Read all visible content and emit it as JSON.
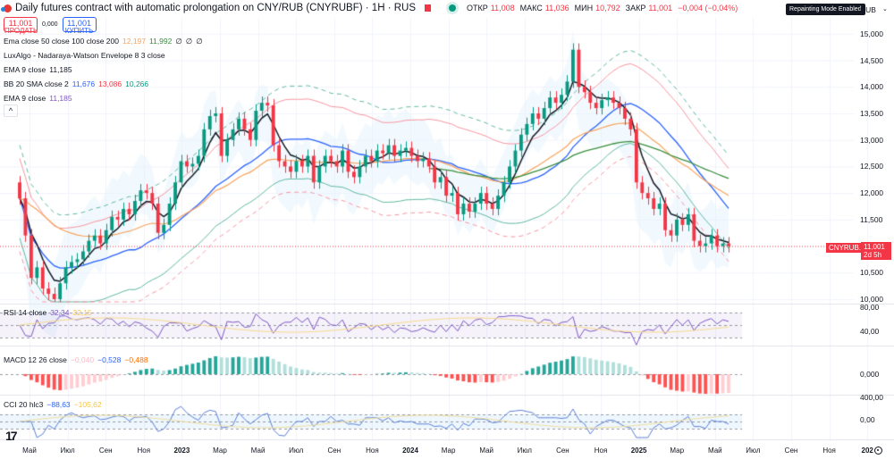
{
  "header": {
    "title": "Daily futures contract with automatic prolongation on CNY/RUB (CNYRUBF) · 1H · RUS",
    "ohlc": [
      {
        "label": "ОТКР",
        "value": "11,008"
      },
      {
        "label": "МАКС",
        "value": "11,036"
      },
      {
        "label": "МИН",
        "value": "10,792"
      },
      {
        "label": "ЗАКР",
        "value": "11,001"
      }
    ],
    "change": "−0,004 (−0,04%)",
    "mode_badge": "Repainting Mode Enabled",
    "currency": "RUB",
    "currency_caret": "⌄"
  },
  "trade": {
    "sell_price": "11,001",
    "sell_label": "ПРОДАТЬ",
    "spread": "0,000",
    "buy_price": "11,001",
    "buy_label": "КУПИТЬ"
  },
  "legends": [
    {
      "name": "Ema close 50 close 100 close 200",
      "values": [
        {
          "v": "12,197",
          "color": "#f7a35c"
        },
        {
          "v": "11,992",
          "color": "#388e3c"
        },
        {
          "v": "∅",
          "color": "#131722"
        },
        {
          "v": "∅",
          "color": "#131722"
        },
        {
          "v": "∅",
          "color": "#131722"
        }
      ]
    },
    {
      "name": "LuxAlgo - Nadaraya-Watson Envelope 8 3 close",
      "values": []
    },
    {
      "name": "EMA 9 close",
      "values": [
        {
          "v": "11,185",
          "color": "#131722"
        }
      ]
    },
    {
      "name": "BB 20 SMA close 2",
      "values": [
        {
          "v": "11,676",
          "color": "#2962ff"
        },
        {
          "v": "13,086",
          "color": "#f23645"
        },
        {
          "v": "10,266",
          "color": "#089981"
        }
      ]
    },
    {
      "name": "EMA 9 close",
      "values": [
        {
          "v": "11,185",
          "color": "#7e57c2"
        }
      ]
    }
  ],
  "collapse_glyph": "^",
  "panes": {
    "rsi": {
      "name": "RSI 14 close",
      "values": [
        {
          "v": "32,34",
          "color": "#7e57c2"
        },
        {
          "v": "32,15",
          "color": "#f5c542"
        }
      ],
      "ticks": [
        "80,00",
        "40,00"
      ]
    },
    "macd": {
      "name": "MACD 12 26 close",
      "values": [
        {
          "v": "−0,040",
          "color": "#f8bbc4"
        },
        {
          "v": "−0,528",
          "color": "#2962ff"
        },
        {
          "v": "−0,488",
          "color": "#ff6d00"
        }
      ],
      "ticks": [
        "0,000"
      ]
    },
    "cci": {
      "name": "CCI 20 hlc3",
      "values": [
        {
          "v": "−88,63",
          "color": "#2962ff"
        },
        {
          "v": "−105,62",
          "color": "#f5c542"
        }
      ],
      "ticks": [
        "400,00",
        "0,00"
      ]
    }
  },
  "price_label": {
    "symbol": "CNYRUB.P",
    "price": "11,001",
    "countdown": "2d 5h"
  },
  "logo": "17",
  "colors": {
    "up": "#089981",
    "down": "#f23645",
    "ema9": "#131722",
    "bb_basis": "#2962ff",
    "bb_upper": "#f23645",
    "bb_lower": "#089981",
    "ema50": "#f7a35c",
    "ema100": "#388e3c"
  },
  "chart_data": {
    "type": "candlestick",
    "title": "Daily futures contract with automatic prolongation on CNY/RUB (CNYRUBF)",
    "ylabel": "RUB",
    "ylim": [
      9.95,
      15.3
    ],
    "y_ticks": [
      "15,000",
      "14,500",
      "14,000",
      "13,500",
      "13,000",
      "12,500",
      "12,000",
      "11,500",
      "10,500",
      "10,000"
    ],
    "y_tick_values": [
      15.0,
      14.5,
      14.0,
      13.5,
      13.0,
      12.5,
      12.0,
      11.5,
      10.5,
      10.0
    ],
    "x_ticks": [
      "Май",
      "Июл",
      "Сен",
      "Ноя",
      "2023",
      "Мар",
      "Май",
      "Июл",
      "Сен",
      "Ноя",
      "2024",
      "Мар",
      "Май",
      "Июл",
      "Сен",
      "Ноя",
      "2025",
      "Мар",
      "Май",
      "Июл",
      "Сен",
      "Ноя",
      "202"
    ],
    "x_tick_bold": [
      false,
      false,
      false,
      false,
      true,
      false,
      false,
      false,
      false,
      false,
      true,
      false,
      false,
      false,
      false,
      false,
      true,
      false,
      false,
      false,
      false,
      false,
      true
    ],
    "last_price": 11.001,
    "close": [
      11.9,
      11.2,
      10.4,
      10.6,
      10.2,
      10.1,
      10.0,
      10.3,
      10.6,
      10.7,
      10.75,
      10.9,
      11.1,
      11.2,
      11.05,
      11.3,
      11.55,
      11.5,
      11.7,
      11.6,
      11.85,
      12.05,
      12.0,
      11.8,
      11.25,
      11.4,
      11.8,
      12.2,
      12.6,
      12.5,
      12.55,
      12.7,
      13.2,
      13.45,
      13.5,
      12.7,
      13.0,
      13.2,
      13.4,
      13.2,
      13.0,
      13.55,
      13.7,
      13.65,
      12.9,
      12.6,
      12.5,
      12.4,
      12.6,
      12.5,
      12.7,
      12.2,
      12.5,
      12.7,
      12.6,
      12.5,
      12.8,
      12.4,
      12.3,
      12.5,
      12.7,
      12.6,
      12.8,
      12.75,
      12.9,
      12.7,
      12.8,
      12.85,
      12.7,
      12.6,
      12.65,
      12.5,
      12.2,
      12.3,
      11.95,
      12.0,
      11.6,
      11.8,
      11.65,
      11.8,
      12.0,
      11.8,
      11.7,
      11.95,
      12.2,
      12.5,
      12.8,
      13.1,
      13.3,
      13.5,
      13.4,
      13.6,
      13.8,
      13.7,
      13.85,
      14.1,
      14.7,
      14.0,
      13.9,
      13.7,
      13.6,
      13.75,
      13.8,
      13.7,
      13.6,
      13.4,
      13.2,
      12.2,
      12.0,
      11.9,
      11.7,
      11.8,
      11.3,
      11.2,
      11.5,
      11.4,
      11.6,
      11.1,
      11.0,
      11.05,
      11.2,
      11.0,
      11.05,
      11.0
    ]
  }
}
